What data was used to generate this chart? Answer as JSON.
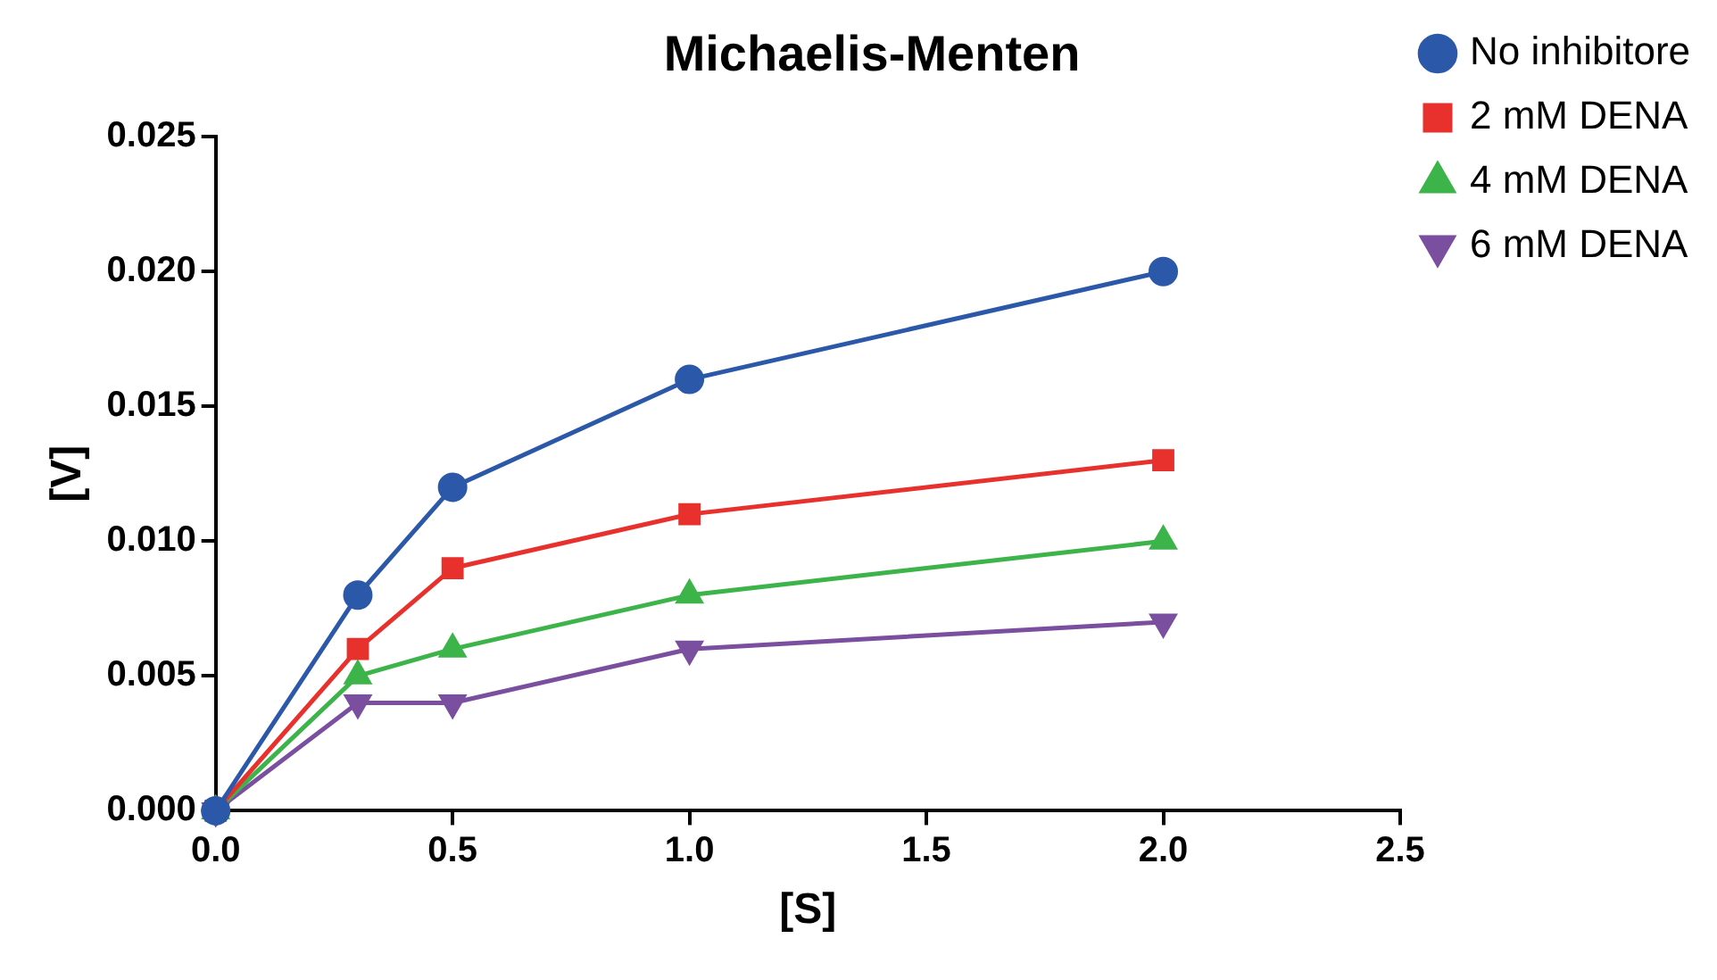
{
  "chart_data": {
    "type": "line",
    "title": "Michaelis-Menten",
    "xlabel": "[S]",
    "ylabel": "[V]",
    "x": [
      0,
      0.3,
      0.5,
      1,
      2
    ],
    "series": [
      {
        "name": "No inhibitore",
        "color": "#2b58a8",
        "marker": "circle",
        "values": [
          0,
          0.008,
          0.012,
          0.016,
          0.02
        ]
      },
      {
        "name": "2 mM DENA",
        "color": "#e8312d",
        "marker": "square",
        "values": [
          0,
          0.006,
          0.009,
          0.011,
          0.013
        ]
      },
      {
        "name": "4 mM DENA",
        "color": "#3cb44a",
        "marker": "triangle",
        "values": [
          0,
          0.005,
          0.006,
          0.008,
          0.01
        ]
      },
      {
        "name": "6 mM DENA",
        "color": "#7b4fa0",
        "marker": "triangle-down",
        "values": [
          0,
          0.004,
          0.004,
          0.006,
          0.007
        ]
      }
    ],
    "xlim": [
      0,
      2.5
    ],
    "xticks": [
      {
        "value": 0,
        "label": "0.0"
      },
      {
        "value": 0.5,
        "label": "0.5"
      },
      {
        "value": 1,
        "label": "1.0"
      },
      {
        "value": 1.5,
        "label": "1.5"
      },
      {
        "value": 2,
        "label": "2.0"
      },
      {
        "value": 2.5,
        "label": "2.5"
      }
    ],
    "ylim": [
      0,
      0.025
    ],
    "yticks": [
      {
        "value": 0,
        "label": "0.000"
      },
      {
        "value": 0.005,
        "label": "0.005"
      },
      {
        "value": 0.01,
        "label": "0.010"
      },
      {
        "value": 0.015,
        "label": "0.015"
      },
      {
        "value": 0.02,
        "label": "0.020"
      },
      {
        "value": 0.025,
        "label": "0.025"
      }
    ],
    "grid": false,
    "legend": "top right",
    "line_style": "solid"
  }
}
